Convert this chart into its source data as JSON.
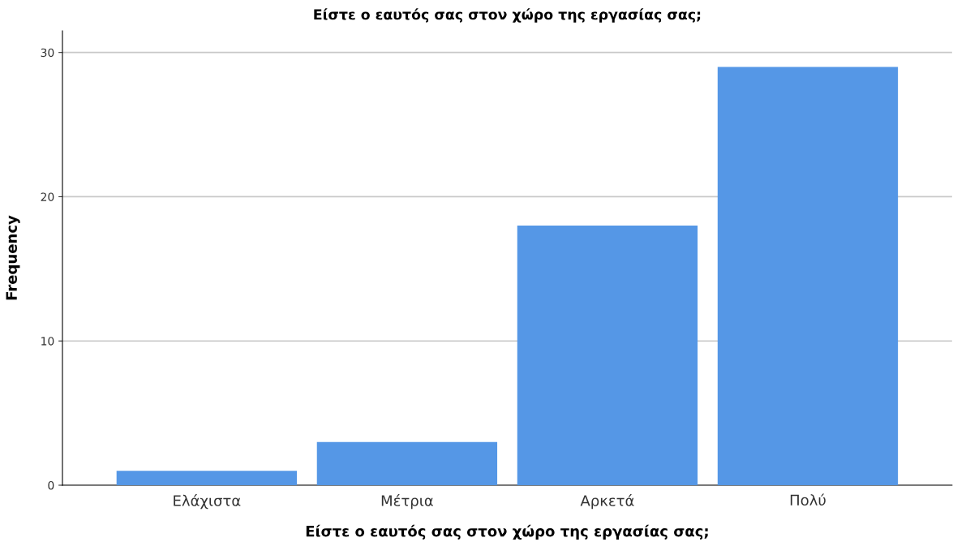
{
  "chart_data": {
    "type": "bar",
    "title": "Είστε ο εαυτός σας στον χώρο της εργασίας σας;",
    "xlabel": "Είστε ο εαυτός σας στον χώρο της εργασίας σας;",
    "ylabel": "Frequency",
    "categories": [
      "Ελάχιστα",
      "Μέτρια",
      "Αρκετά",
      "Πολύ"
    ],
    "values": [
      1,
      3,
      18,
      29
    ],
    "color": "#5597e6",
    "ylim": [
      0,
      31.5
    ],
    "yticks": [
      0,
      10,
      20,
      30
    ],
    "grid": "y",
    "legend": false
  }
}
